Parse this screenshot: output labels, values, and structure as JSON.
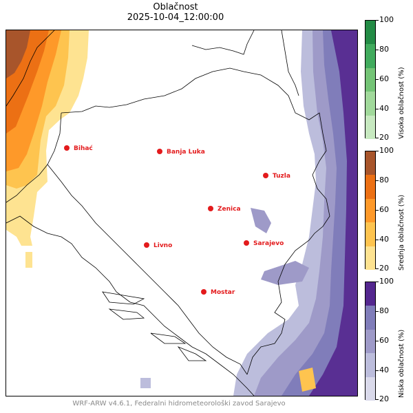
{
  "title": "Oblačnost",
  "subtitle": "2025-10-04_12:00:00",
  "footer": "WRF-ARW v4.6.1, Federalni hidrometeorološki zavod Sarajevo",
  "colors": {
    "city_dot": "#e31a1c",
    "city_label": "#e31a1c",
    "high_cloud": [
      "#c7e9c0",
      "#a1d99b",
      "#74c476",
      "#41ab5d",
      "#238b45"
    ],
    "mid_cloud": [
      "#fee391",
      "#fec44f",
      "#fe9929",
      "#ec7014",
      "#a8552b"
    ],
    "low_cloud": [
      "#dadaeb",
      "#bcbddc",
      "#9e9ac8",
      "#807dba",
      "#54278f"
    ]
  },
  "colorbars": [
    {
      "id": "visoka",
      "label": "Visoka oblačnost (%)",
      "ticks": [
        "100",
        "80",
        "60",
        "40",
        "20"
      ]
    },
    {
      "id": "srednja",
      "label": "Srednja oblačnost (%)",
      "ticks": [
        "100",
        "80",
        "60",
        "40",
        "20"
      ]
    },
    {
      "id": "niska",
      "label": "Niska oblačnost (%)",
      "ticks": [
        "100",
        "80",
        "60",
        "40",
        "20"
      ]
    }
  ],
  "cities": [
    {
      "name": "Bihać"
    },
    {
      "name": "Banja Luka"
    },
    {
      "name": "Tuzla"
    },
    {
      "name": "Zenica"
    },
    {
      "name": "Livno"
    },
    {
      "name": "Sarajevo"
    },
    {
      "name": "Mostar"
    }
  ]
}
